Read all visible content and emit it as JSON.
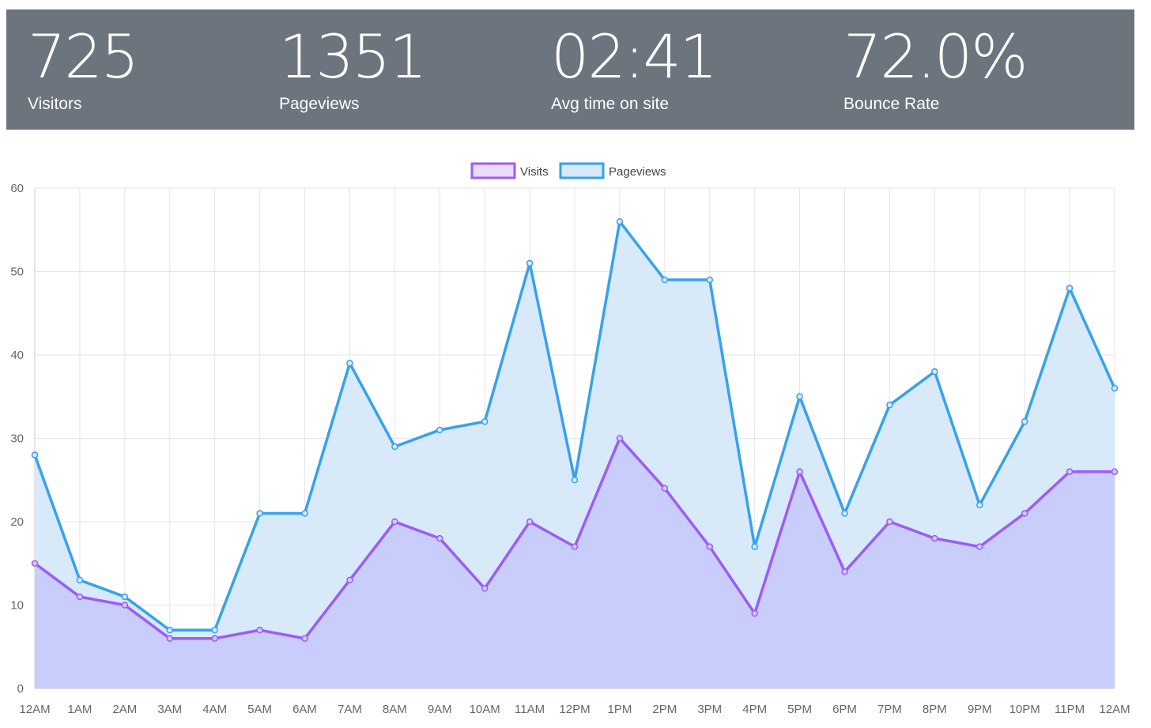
{
  "stats": [
    {
      "value": "725",
      "label": "Visitors"
    },
    {
      "value": "1351",
      "label": "Pageviews"
    },
    {
      "value": "02:41",
      "label": "Avg time on site"
    },
    {
      "value": "72.0%",
      "label": "Bounce Rate"
    }
  ],
  "colors": {
    "stats_bar_bg": "#6c757d",
    "visits_line": "#9d5cf5",
    "visits_fill": "#c9cdfb",
    "pageviews_line": "#36a2eb",
    "pageviews_fill": "#d8e9f9",
    "grid": "#e5e5e5",
    "tick_text": "#666666"
  },
  "chart_data": {
    "type": "area",
    "title": "",
    "xlabel": "",
    "ylabel": "",
    "legend_position": "top",
    "grid": true,
    "ylim": [
      0,
      60
    ],
    "yticks": [
      0,
      10,
      20,
      30,
      40,
      50,
      60
    ],
    "categories": [
      "12AM",
      "1AM",
      "2AM",
      "3AM",
      "4AM",
      "5AM",
      "6AM",
      "7AM",
      "8AM",
      "9AM",
      "10AM",
      "11AM",
      "12PM",
      "1PM",
      "2PM",
      "3PM",
      "4PM",
      "5PM",
      "6PM",
      "7PM",
      "8PM",
      "9PM",
      "10PM",
      "11PM",
      "12AM"
    ],
    "series": [
      {
        "name": "Visits",
        "values": [
          15,
          11,
          10,
          6,
          6,
          7,
          6,
          13,
          20,
          18,
          12,
          20,
          17,
          30,
          24,
          17,
          9,
          26,
          14,
          20,
          18,
          17,
          21,
          26,
          26
        ]
      },
      {
        "name": "Pageviews",
        "values": [
          28,
          13,
          11,
          7,
          7,
          21,
          21,
          39,
          29,
          31,
          32,
          51,
          25,
          56,
          49,
          49,
          17,
          35,
          21,
          34,
          38,
          22,
          32,
          48,
          36
        ]
      }
    ]
  }
}
